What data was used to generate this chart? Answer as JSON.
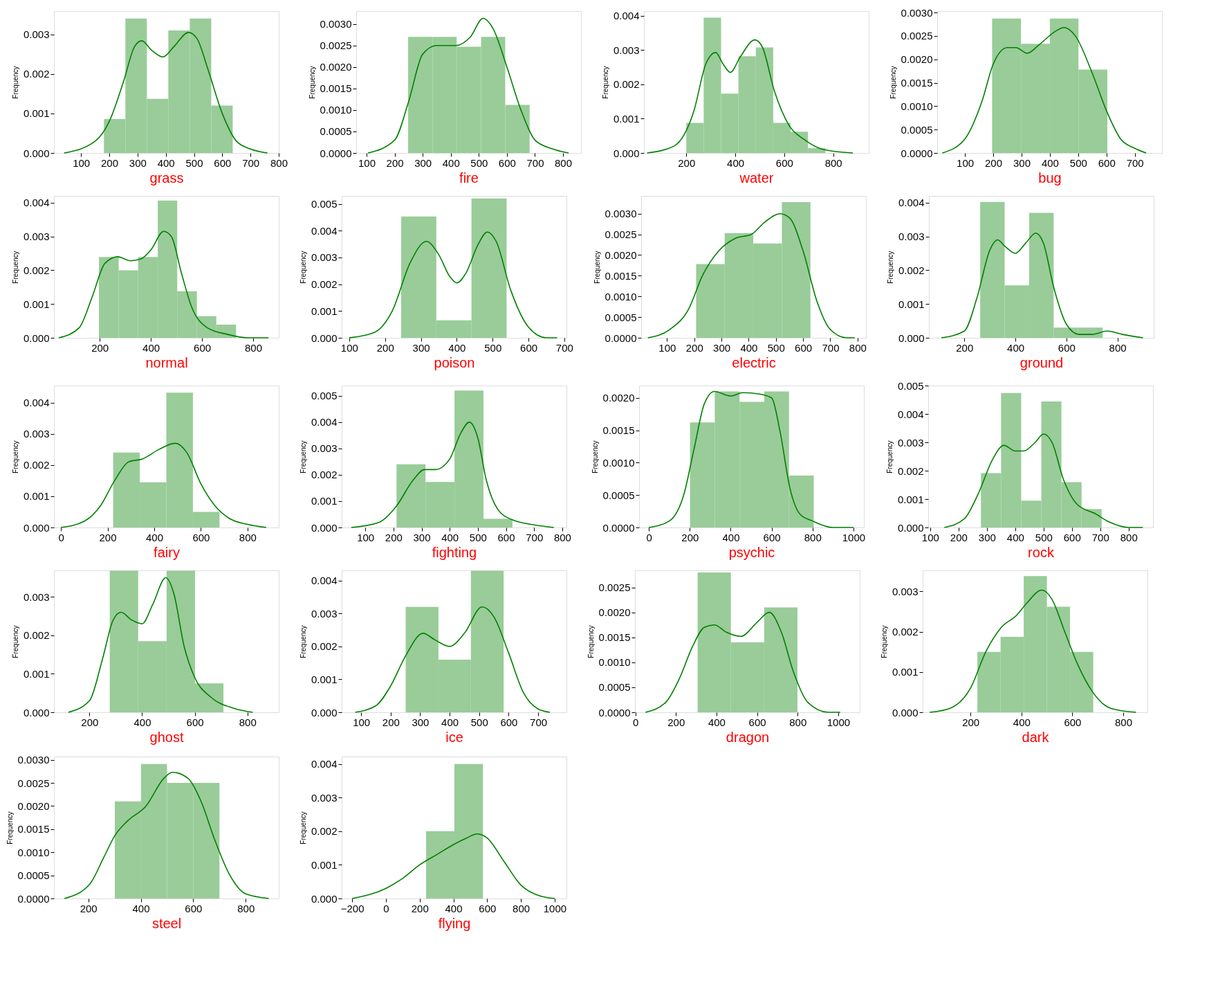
{
  "chart_data": [
    {
      "type": "histogram",
      "xlabel": "grass",
      "ylabel": "Frequency",
      "xlim": [
        4,
        800
      ],
      "xticks": [
        100,
        200,
        300,
        400,
        500,
        600,
        700,
        800
      ],
      "ylim": [
        0,
        0.00359
      ],
      "yticks": [
        {
          "value": 0,
          "label": "0.000"
        },
        {
          "value": 0.001,
          "label": "0.001"
        },
        {
          "value": 0.002,
          "label": "0.002"
        },
        {
          "value": 0.003,
          "label": "0.003"
        }
      ],
      "series": [
        {
          "type": "histogram",
          "color": "#99cc99",
          "bins": [
            181,
            257,
            333,
            409,
            485,
            561,
            637
          ],
          "values": [
            0.00086,
            0.0034,
            0.00137,
            0.0031,
            0.0034,
            0.0012
          ]
        },
        {
          "type": "line",
          "color": "#008000",
          "line_style": "solid",
          "x": [
            40,
            150,
            200,
            250,
            290,
            315,
            350,
            390,
            430,
            480,
            510,
            550,
            600,
            650,
            700,
            760
          ],
          "values": [
            0,
            0.0003,
            0.0008,
            0.0018,
            0.0027,
            0.00284,
            0.0026,
            0.00243,
            0.0027,
            0.00305,
            0.0029,
            0.0021,
            0.001,
            0.0003,
            0.0001,
            0
          ]
        }
      ]
    },
    {
      "type": "histogram",
      "xlabel": "fire",
      "ylabel": "Frequency",
      "xlim": [
        63,
        864
      ],
      "xticks": [
        100,
        200,
        300,
        400,
        500,
        600,
        700,
        800
      ],
      "ylim": [
        0,
        0.0033
      ],
      "yticks": [
        {
          "value": 0,
          "label": "0.0000"
        },
        {
          "value": 0.0005,
          "label": "0.0005"
        },
        {
          "value": 0.001,
          "label": "0.0010"
        },
        {
          "value": 0.0015,
          "label": "0.0015"
        },
        {
          "value": 0.002,
          "label": "0.0020"
        },
        {
          "value": 0.0025,
          "label": "0.0025"
        },
        {
          "value": 0.003,
          "label": "0.0030"
        }
      ],
      "series": [
        {
          "type": "histogram",
          "color": "#99cc99",
          "bins": [
            248,
            335,
            421,
            508,
            594,
            681
          ],
          "values": [
            0.0027,
            0.0027,
            0.00247,
            0.0027,
            0.00112
          ]
        },
        {
          "type": "line",
          "color": "#008000",
          "line_style": "solid",
          "x": [
            105,
            200,
            250,
            300,
            350,
            420,
            470,
            515,
            550,
            600,
            650,
            700,
            760,
            820
          ],
          "values": [
            0,
            0.0003,
            0.0012,
            0.0023,
            0.0025,
            0.0025,
            0.0027,
            0.00313,
            0.0029,
            0.002,
            0.001,
            0.0003,
            0.0001,
            0
          ]
        }
      ]
    },
    {
      "type": "histogram",
      "xlabel": "water",
      "ylabel": "Frequency",
      "xlim": [
        27,
        945
      ],
      "xticks": [
        200,
        400,
        600,
        800
      ],
      "ylim": [
        0,
        0.00414
      ],
      "yticks": [
        {
          "value": 0,
          "label": "0.000"
        },
        {
          "value": 0.001,
          "label": "0.001"
        },
        {
          "value": 0.002,
          "label": "0.002"
        },
        {
          "value": 0.003,
          "label": "0.003"
        },
        {
          "value": 0.004,
          "label": "0.004"
        }
      ],
      "series": [
        {
          "type": "histogram",
          "color": "#99cc99",
          "bins": [
            200,
            271,
            342,
            413,
            484,
            555,
            626,
            697,
            768
          ],
          "values": [
            0.00088,
            0.00395,
            0.00173,
            0.00282,
            0.00308,
            0.00088,
            0.00062,
            0.00014
          ]
        },
        {
          "type": "line",
          "color": "#008000",
          "line_style": "solid",
          "x": [
            40,
            150,
            230,
            280,
            320,
            350,
            380,
            420,
            480,
            510,
            560,
            620,
            680,
            760,
            880
          ],
          "values": [
            0,
            0.0002,
            0.0012,
            0.0026,
            0.00293,
            0.0026,
            0.00235,
            0.0028,
            0.0033,
            0.0031,
            0.0018,
            0.0008,
            0.0004,
            0.0001,
            0
          ]
        }
      ]
    },
    {
      "type": "histogram",
      "xlabel": "bug",
      "ylabel": "Frequency",
      "xlim": [
        2,
        796
      ],
      "xticks": [
        100,
        200,
        300,
        400,
        500,
        600,
        700
      ],
      "ylim": [
        0,
        0.00303
      ],
      "yticks": [
        {
          "value": 0,
          "label": "0.0000"
        },
        {
          "value": 0.0005,
          "label": "0.0005"
        },
        {
          "value": 0.001,
          "label": "0.0010"
        },
        {
          "value": 0.0015,
          "label": "0.0015"
        },
        {
          "value": 0.002,
          "label": "0.0020"
        },
        {
          "value": 0.0025,
          "label": "0.0025"
        },
        {
          "value": 0.003,
          "label": "0.0030"
        }
      ],
      "series": [
        {
          "type": "histogram",
          "color": "#99cc99",
          "bins": [
            196,
            298,
            400,
            501,
            603
          ],
          "values": [
            0.00287,
            0.00233,
            0.00287,
            0.00178
          ]
        },
        {
          "type": "line",
          "color": "#008000",
          "line_style": "solid",
          "x": [
            20,
            100,
            160,
            200,
            250,
            280,
            320,
            360,
            420,
            450,
            490,
            550,
            600,
            650,
            700,
            740
          ],
          "values": [
            0,
            0.0003,
            0.0011,
            0.0019,
            0.00225,
            0.00225,
            0.00213,
            0.0023,
            0.0026,
            0.00268,
            0.0025,
            0.0017,
            0.0009,
            0.0003,
            0.0001,
            0
          ]
        }
      ]
    },
    {
      "type": "histogram",
      "xlabel": "normal",
      "ylabel": "Frequency",
      "xlim": [
        21,
        900
      ],
      "xticks": [
        200,
        400,
        600,
        800
      ],
      "ylim": [
        0,
        0.0042
      ],
      "yticks": [
        {
          "value": 0,
          "label": "0.000"
        },
        {
          "value": 0.001,
          "label": "0.001"
        },
        {
          "value": 0.002,
          "label": "0.002"
        },
        {
          "value": 0.003,
          "label": "0.003"
        },
        {
          "value": 0.004,
          "label": "0.004"
        }
      ],
      "series": [
        {
          "type": "histogram",
          "color": "#99cc99",
          "bins": [
            197,
            274,
            350,
            427,
            503,
            580,
            656,
            733
          ],
          "values": [
            0.00239,
            0.002,
            0.00239,
            0.00406,
            0.00138,
            0.00064,
            0.00039
          ]
        },
        {
          "type": "line",
          "color": "#008000",
          "line_style": "solid",
          "x": [
            40,
            120,
            170,
            220,
            270,
            320,
            360,
            400,
            450,
            480,
            520,
            560,
            620,
            700,
            780,
            860
          ],
          "values": [
            0,
            0.0003,
            0.0012,
            0.0022,
            0.0024,
            0.00228,
            0.00233,
            0.0026,
            0.00315,
            0.003,
            0.0019,
            0.0009,
            0.0003,
            0.0001,
            0,
            0
          ]
        }
      ]
    },
    {
      "type": "histogram",
      "xlabel": "poison",
      "ylabel": "Frequency",
      "xlim": [
        79,
        706
      ],
      "xticks": [
        100,
        200,
        300,
        400,
        500,
        600,
        700
      ],
      "ylim": [
        0,
        0.0053
      ],
      "yticks": [
        {
          "value": 0,
          "label": "0.000"
        },
        {
          "value": 0.001,
          "label": "0.001"
        },
        {
          "value": 0.002,
          "label": "0.002"
        },
        {
          "value": 0.003,
          "label": "0.003"
        },
        {
          "value": 0.004,
          "label": "0.004"
        },
        {
          "value": 0.005,
          "label": "0.005"
        }
      ],
      "series": [
        {
          "type": "histogram",
          "color": "#99cc99",
          "bins": [
            245,
            343,
            441,
            539
          ],
          "values": [
            0.00453,
            0.00065,
            0.0052
          ]
        },
        {
          "type": "line",
          "color": "#008000",
          "line_style": "solid",
          "x": [
            100,
            170,
            220,
            270,
            315,
            350,
            380,
            400,
            425,
            460,
            485,
            510,
            550,
            600,
            650,
            680
          ],
          "values": [
            0,
            0.0002,
            0.001,
            0.0028,
            0.0036,
            0.0031,
            0.0023,
            0.00205,
            0.0024,
            0.0035,
            0.00395,
            0.0036,
            0.0018,
            0.0004,
            0,
            0
          ]
        }
      ]
    },
    {
      "type": "histogram",
      "xlabel": "electric",
      "ylabel": "Frequency",
      "xlim": [
        5,
        831
      ],
      "xticks": [
        100,
        200,
        300,
        400,
        500,
        600,
        700,
        800
      ],
      "ylim": [
        0,
        0.00343
      ],
      "yticks": [
        {
          "value": 0,
          "label": "0.0000"
        },
        {
          "value": 0.0005,
          "label": "0.0005"
        },
        {
          "value": 0.001,
          "label": "0.0010"
        },
        {
          "value": 0.0015,
          "label": "0.0015"
        },
        {
          "value": 0.002,
          "label": "0.0020"
        },
        {
          "value": 0.0025,
          "label": "0.0025"
        },
        {
          "value": 0.003,
          "label": "0.0030"
        }
      ],
      "series": [
        {
          "type": "histogram",
          "color": "#99cc99",
          "bins": [
            207,
            312,
            417,
            522,
            627
          ],
          "values": [
            0.00178,
            0.00253,
            0.00228,
            0.00328
          ]
        },
        {
          "type": "line",
          "color": "#008000",
          "line_style": "solid",
          "x": [
            30,
            110,
            180,
            230,
            290,
            350,
            410,
            460,
            515,
            550,
            600,
            650,
            700,
            760,
            790
          ],
          "values": [
            0,
            0.0002,
            0.0007,
            0.0015,
            0.0021,
            0.0024,
            0.0025,
            0.0028,
            0.003,
            0.0029,
            0.0021,
            0.0009,
            0.0002,
            0,
            0
          ]
        }
      ]
    },
    {
      "type": "histogram",
      "xlabel": "ground",
      "ylabel": "Frequency",
      "xlim": [
        61,
        942
      ],
      "xticks": [
        200,
        400,
        600,
        800
      ],
      "ylim": [
        0,
        0.0042
      ],
      "yticks": [
        {
          "value": 0,
          "label": "0.000"
        },
        {
          "value": 0.001,
          "label": "0.001"
        },
        {
          "value": 0.002,
          "label": "0.002"
        },
        {
          "value": 0.003,
          "label": "0.003"
        },
        {
          "value": 0.004,
          "label": "0.004"
        }
      ],
      "series": [
        {
          "type": "histogram",
          "color": "#99cc99",
          "bins": [
            262,
            358,
            454,
            550,
            646,
            742
          ],
          "values": [
            0.00402,
            0.00155,
            0.0037,
            0.0003,
            0.0003
          ]
        },
        {
          "type": "line",
          "color": "#008000",
          "line_style": "solid",
          "x": [
            110,
            200,
            250,
            300,
            330,
            360,
            400,
            440,
            480,
            510,
            550,
            600,
            650,
            700,
            760,
            820,
            900
          ],
          "values": [
            0,
            0.0002,
            0.0012,
            0.0026,
            0.0029,
            0.0027,
            0.0025,
            0.0028,
            0.0031,
            0.0028,
            0.0015,
            0.0004,
            0.0001,
            0.0001,
            0.0002,
            0.0001,
            0
          ]
        }
      ]
    },
    {
      "type": "histogram",
      "xlabel": "fairy",
      "ylabel": "Frequency",
      "xlim": [
        -30,
        934
      ],
      "xticks": [
        0,
        200,
        400,
        600,
        800
      ],
      "ylim": [
        0,
        0.00455
      ],
      "yticks": [
        {
          "value": 0,
          "label": "0.000"
        },
        {
          "value": 0.001,
          "label": "0.001"
        },
        {
          "value": 0.002,
          "label": "0.002"
        },
        {
          "value": 0.003,
          "label": "0.003"
        },
        {
          "value": 0.004,
          "label": "0.004"
        }
      ],
      "series": [
        {
          "type": "histogram",
          "color": "#99cc99",
          "bins": [
            224,
            338,
            452,
            566,
            680
          ],
          "values": [
            0.0024,
            0.00145,
            0.00432,
            0.0005
          ]
        },
        {
          "type": "line",
          "color": "#008000",
          "line_style": "solid",
          "x": [
            0,
            100,
            170,
            230,
            290,
            350,
            420,
            490,
            540,
            600,
            660,
            720,
            800,
            880
          ],
          "values": [
            0,
            0.0002,
            0.0007,
            0.0015,
            0.0021,
            0.0022,
            0.0025,
            0.0027,
            0.0024,
            0.0014,
            0.0007,
            0.0003,
            0.0001,
            0
          ]
        }
      ]
    },
    {
      "type": "histogram",
      "xlabel": "fighting",
      "ylabel": "Frequency",
      "xlim": [
        16,
        815
      ],
      "xticks": [
        100,
        200,
        300,
        400,
        500,
        600,
        700,
        800
      ],
      "ylim": [
        0,
        0.00539
      ],
      "yticks": [
        {
          "value": 0,
          "label": "0.000"
        },
        {
          "value": 0.001,
          "label": "0.001"
        },
        {
          "value": 0.002,
          "label": "0.002"
        },
        {
          "value": 0.003,
          "label": "0.003"
        },
        {
          "value": 0.004,
          "label": "0.004"
        },
        {
          "value": 0.005,
          "label": "0.005"
        }
      ],
      "series": [
        {
          "type": "histogram",
          "color": "#99cc99",
          "bins": [
            211,
            314,
            417,
            520,
            623
          ],
          "values": [
            0.0024,
            0.00173,
            0.0052,
            0.00033
          ]
        },
        {
          "type": "line",
          "color": "#008000",
          "line_style": "solid",
          "x": [
            50,
            150,
            210,
            270,
            310,
            350,
            400,
            440,
            470,
            500,
            530,
            570,
            620,
            700,
            770
          ],
          "values": [
            0,
            0.0002,
            0.0008,
            0.0018,
            0.0022,
            0.0022,
            0.0026,
            0.0036,
            0.004,
            0.0034,
            0.0018,
            0.0007,
            0.0003,
            0.0001,
            0
          ]
        }
      ]
    },
    {
      "type": "histogram",
      "xlabel": "psychic",
      "ylabel": "Frequency",
      "xlim": [
        -48,
        1051
      ],
      "xticks": [
        0,
        200,
        400,
        600,
        800,
        1000
      ],
      "ylim": [
        0,
        0.00219
      ],
      "yticks": [
        {
          "value": 0,
          "label": "0.0000"
        },
        {
          "value": 0.0005,
          "label": "0.0005"
        },
        {
          "value": 0.001,
          "label": "0.0010"
        },
        {
          "value": 0.0015,
          "label": "0.0015"
        },
        {
          "value": 0.002,
          "label": "0.0020"
        }
      ],
      "series": [
        {
          "type": "histogram",
          "color": "#99cc99",
          "bins": [
            201,
            322,
            443,
            564,
            685,
            806
          ],
          "values": [
            0.00162,
            0.0021,
            0.00194,
            0.0021,
            0.0008
          ]
        },
        {
          "type": "line",
          "color": "#008000",
          "line_style": "solid",
          "x": [
            0,
            100,
            170,
            220,
            270,
            320,
            400,
            460,
            540,
            600,
            640,
            690,
            740,
            800,
            900,
            1000
          ],
          "values": [
            0,
            0.0001,
            0.0005,
            0.0012,
            0.0019,
            0.0021,
            0.00203,
            0.00208,
            0.00206,
            0.002,
            0.0015,
            0.0006,
            0.0002,
            0.0001,
            0,
            0
          ]
        }
      ]
    },
    {
      "type": "histogram",
      "xlabel": "rock",
      "ylabel": "Frequency",
      "xlim": [
        93,
        886
      ],
      "xticks": [
        100,
        200,
        300,
        400,
        500,
        600,
        700,
        800
      ],
      "ylim": [
        0,
        0.00501
      ],
      "yticks": [
        {
          "value": 0,
          "label": "0.000"
        },
        {
          "value": 0.001,
          "label": "0.001"
        },
        {
          "value": 0.002,
          "label": "0.002"
        },
        {
          "value": 0.003,
          "label": "0.003"
        },
        {
          "value": 0.004,
          "label": "0.004"
        },
        {
          "value": 0.005,
          "label": "0.005"
        }
      ],
      "series": [
        {
          "type": "histogram",
          "color": "#99cc99",
          "bins": [
            279,
            350,
            421,
            492,
            563,
            634,
            705
          ],
          "values": [
            0.00192,
            0.00475,
            0.00095,
            0.00445,
            0.0016,
            0.00065
          ]
        },
        {
          "type": "line",
          "color": "#008000",
          "line_style": "solid",
          "x": [
            150,
            220,
            270,
            320,
            360,
            400,
            430,
            470,
            500,
            530,
            570,
            620,
            680,
            730,
            800,
            850
          ],
          "values": [
            0,
            0.0003,
            0.0012,
            0.0024,
            0.0029,
            0.0027,
            0.0027,
            0.003,
            0.0033,
            0.003,
            0.0017,
            0.0008,
            0.0005,
            0.0002,
            0,
            0
          ]
        }
      ]
    },
    {
      "type": "histogram",
      "xlabel": "ghost",
      "ylabel": "Frequency",
      "xlim": [
        65,
        919
      ],
      "xticks": [
        200,
        400,
        600,
        800
      ],
      "ylim": [
        0,
        0.00369
      ],
      "yticks": [
        {
          "value": 0,
          "label": "0.000"
        },
        {
          "value": 0.001,
          "label": "0.001"
        },
        {
          "value": 0.002,
          "label": "0.002"
        },
        {
          "value": 0.003,
          "label": "0.003"
        }
      ],
      "series": [
        {
          "type": "histogram",
          "color": "#99cc99",
          "bins": [
            277,
            385,
            493,
            601,
            709
          ],
          "values": [
            0.00368,
            0.00185,
            0.00368,
            0.00075
          ]
        },
        {
          "type": "line",
          "color": "#008000",
          "line_style": "solid",
          "x": [
            120,
            200,
            250,
            290,
            320,
            360,
            400,
            440,
            490,
            520,
            560,
            600,
            660,
            750,
            820
          ],
          "values": [
            0,
            0.0003,
            0.0014,
            0.0024,
            0.0026,
            0.0024,
            0.0023,
            0.0028,
            0.0035,
            0.0031,
            0.0017,
            0.0009,
            0.0004,
            0.0001,
            0
          ]
        }
      ]
    },
    {
      "type": "histogram",
      "xlabel": "ice",
      "ylabel": "Frequency",
      "xlim": [
        34,
        796
      ],
      "xticks": [
        100,
        200,
        300,
        400,
        500,
        600,
        700
      ],
      "ylim": [
        0,
        0.00431
      ],
      "yticks": [
        {
          "value": 0,
          "label": "0.000"
        },
        {
          "value": 0.001,
          "label": "0.001"
        },
        {
          "value": 0.002,
          "label": "0.002"
        },
        {
          "value": 0.003,
          "label": "0.003"
        },
        {
          "value": 0.004,
          "label": "0.004"
        }
      ],
      "series": [
        {
          "type": "histogram",
          "color": "#99cc99",
          "bins": [
            251,
            362,
            472,
            583
          ],
          "values": [
            0.0032,
            0.0016,
            0.0043
          ]
        },
        {
          "type": "line",
          "color": "#008000",
          "line_style": "solid",
          "x": [
            80,
            150,
            200,
            250,
            310,
            350,
            400,
            450,
            510,
            550,
            600,
            650,
            700,
            740
          ],
          "values": [
            0,
            0.0002,
            0.0008,
            0.0017,
            0.0024,
            0.0022,
            0.002,
            0.0024,
            0.0032,
            0.0029,
            0.0018,
            0.0006,
            0.0001,
            0
          ]
        }
      ]
    },
    {
      "type": "histogram",
      "xlabel": "dragon",
      "ylabel": "Frequency",
      "xlim": [
        -2,
        1106
      ],
      "xticks": [
        0,
        200,
        400,
        600,
        800,
        1000
      ],
      "ylim": [
        0,
        0.00284
      ],
      "yticks": [
        {
          "value": 0,
          "label": "0.0000"
        },
        {
          "value": 0.0005,
          "label": "0.0005"
        },
        {
          "value": 0.001,
          "label": "0.0010"
        },
        {
          "value": 0.0015,
          "label": "0.0015"
        },
        {
          "value": 0.002,
          "label": "0.0020"
        },
        {
          "value": 0.0025,
          "label": "0.0025"
        }
      ],
      "series": [
        {
          "type": "histogram",
          "color": "#99cc99",
          "bins": [
            307,
            471,
            635,
            799
          ],
          "values": [
            0.0028,
            0.0014,
            0.0021
          ]
        },
        {
          "type": "line",
          "color": "#008000",
          "line_style": "solid",
          "x": [
            50,
            150,
            220,
            280,
            340,
            390,
            450,
            520,
            600,
            660,
            720,
            780,
            850,
            950,
            1010
          ],
          "values": [
            0,
            0.0002,
            0.0007,
            0.0013,
            0.0017,
            0.00175,
            0.0016,
            0.00152,
            0.0018,
            0.002,
            0.0016,
            0.0008,
            0.0002,
            0,
            0
          ]
        }
      ]
    },
    {
      "type": "histogram",
      "xlabel": "dark",
      "ylabel": "Frequency",
      "xlim": [
        12,
        895
      ],
      "xticks": [
        200,
        400,
        600,
        800
      ],
      "ylim": [
        0,
        0.00352
      ],
      "yticks": [
        {
          "value": 0,
          "label": "0.000"
        },
        {
          "value": 0.001,
          "label": "0.001"
        },
        {
          "value": 0.002,
          "label": "0.002"
        },
        {
          "value": 0.003,
          "label": "0.003"
        }
      ],
      "series": [
        {
          "type": "histogram",
          "color": "#99cc99",
          "bins": [
            227,
            318,
            409,
            500,
            591,
            682
          ],
          "values": [
            0.0015,
            0.00187,
            0.00338,
            0.00262,
            0.0015
          ]
        },
        {
          "type": "line",
          "color": "#008000",
          "line_style": "solid",
          "x": [
            40,
            120,
            200,
            260,
            320,
            380,
            420,
            480,
            520,
            570,
            620,
            680,
            750,
            850
          ],
          "values": [
            0,
            0.0001,
            0.0006,
            0.0015,
            0.0021,
            0.0024,
            0.0027,
            0.00303,
            0.0028,
            0.002,
            0.0012,
            0.0005,
            0.0001,
            0
          ]
        }
      ]
    },
    {
      "type": "histogram",
      "xlabel": "steel",
      "ylabel": "Frequency",
      "xlim": [
        69,
        926
      ],
      "xticks": [
        200,
        400,
        600,
        800
      ],
      "ylim": [
        0,
        0.00307
      ],
      "yticks": [
        {
          "value": 0,
          "label": "0.0000"
        },
        {
          "value": 0.0005,
          "label": "0.0005"
        },
        {
          "value": 0.001,
          "label": "0.0010"
        },
        {
          "value": 0.0015,
          "label": "0.0015"
        },
        {
          "value": 0.002,
          "label": "0.0020"
        },
        {
          "value": 0.0025,
          "label": "0.0025"
        },
        {
          "value": 0.003,
          "label": "0.0030"
        }
      ],
      "series": [
        {
          "type": "histogram",
          "color": "#99cc99",
          "bins": [
            301,
            401,
            500,
            600,
            700
          ],
          "values": [
            0.0021,
            0.00291,
            0.0025,
            0.0025
          ]
        },
        {
          "type": "line",
          "color": "#008000",
          "line_style": "solid",
          "x": [
            109,
            204,
            260,
            300,
            350,
            420,
            488,
            520,
            580,
            630,
            680,
            740,
            800,
            888
          ],
          "values": [
            0,
            0.0003,
            0.0009,
            0.00135,
            0.00168,
            0.002,
            0.0026,
            0.00273,
            0.0026,
            0.0021,
            0.0013,
            0.0005,
            0.0001,
            0
          ]
        }
      ]
    },
    {
      "type": "histogram",
      "xlabel": "flying",
      "ylabel": "Frequency",
      "xlim": [
        -262,
        1070
      ],
      "xticks": [
        -200,
        0,
        200,
        400,
        600,
        800,
        1000
      ],
      "ylim": [
        0,
        0.00422
      ],
      "yticks": [
        {
          "value": 0,
          "label": "0.000"
        },
        {
          "value": 0.001,
          "label": "0.001"
        },
        {
          "value": 0.002,
          "label": "0.002"
        },
        {
          "value": 0.003,
          "label": "0.003"
        },
        {
          "value": 0.004,
          "label": "0.004"
        }
      ],
      "series": [
        {
          "type": "histogram",
          "color": "#99cc99",
          "bins": [
            238,
            406,
            575
          ],
          "values": [
            0.002,
            0.004
          ]
        },
        {
          "type": "line",
          "color": "#008000",
          "line_style": "solid",
          "x": [
            -200,
            0,
            100,
            200,
            300,
            400,
            480,
            540,
            600,
            700,
            800,
            900,
            1000
          ],
          "values": [
            0,
            0.0003,
            0.0006,
            0.001,
            0.0013,
            0.0016,
            0.0018,
            0.00192,
            0.0018,
            0.0011,
            0.0004,
            0.0001,
            0
          ]
        }
      ]
    }
  ]
}
